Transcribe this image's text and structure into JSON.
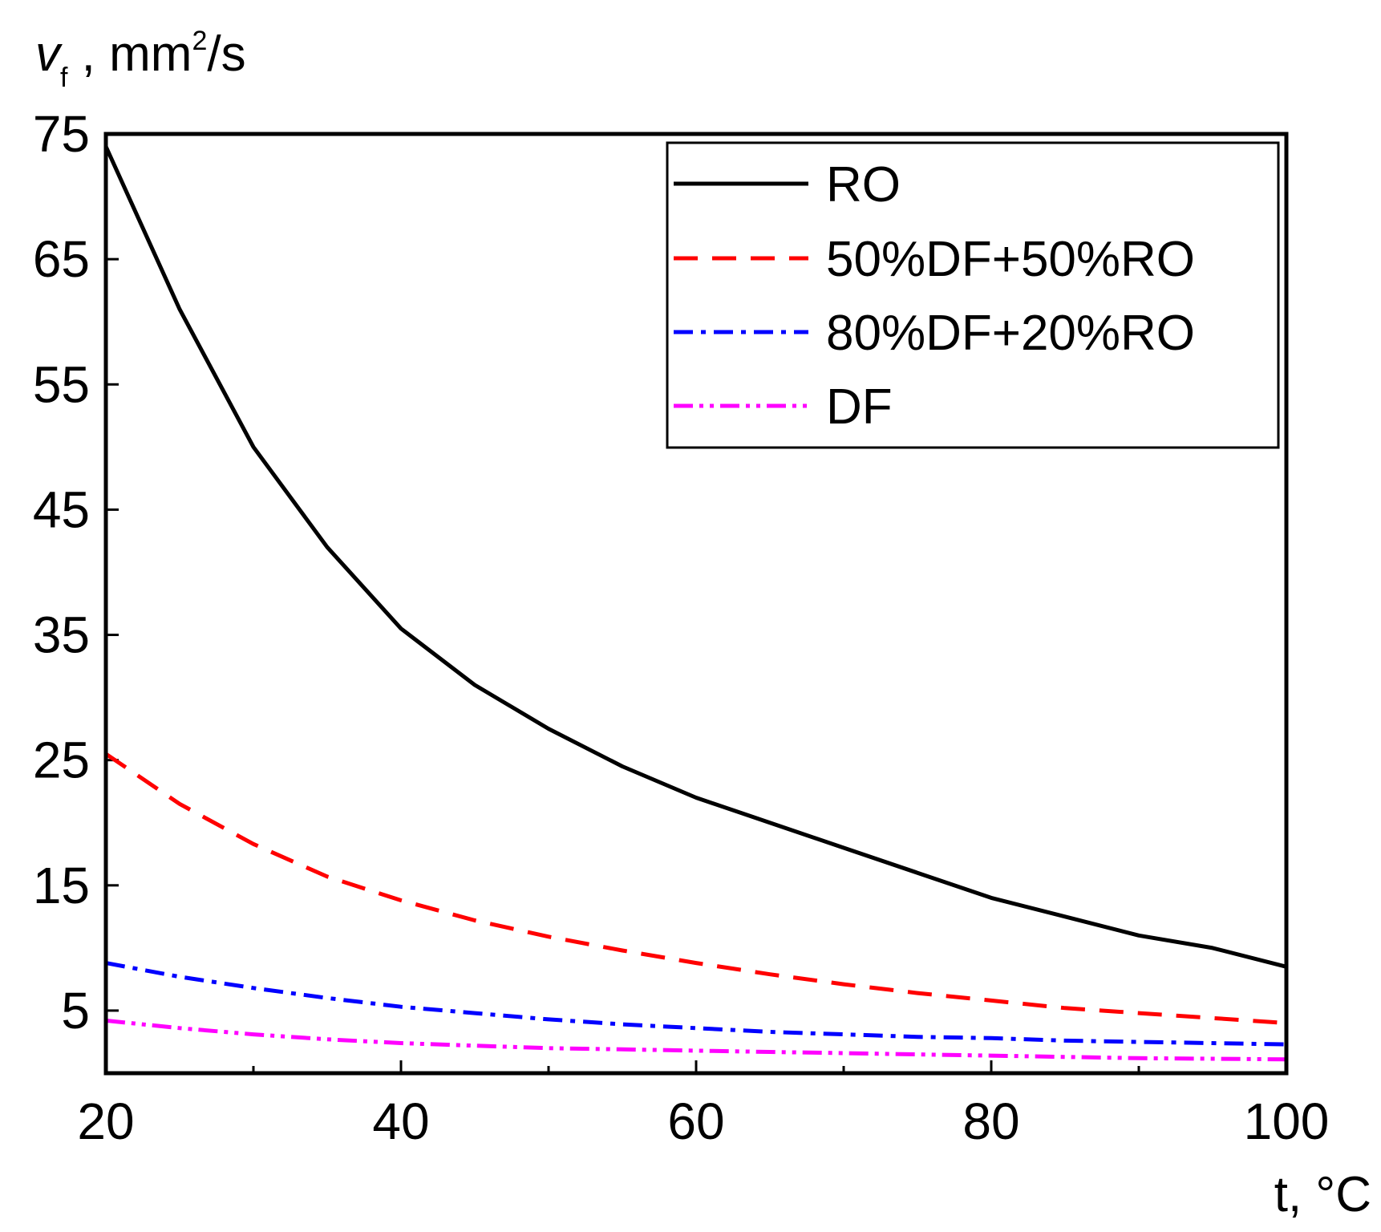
{
  "chart_data": {
    "type": "line",
    "title": "",
    "ylabel": {
      "symbol": "v",
      "subscript": "f",
      "sep": " ,",
      "unit_main": " mm",
      "unit_sup": "2",
      "unit_tail": "/s"
    },
    "xlabel": "t, °C",
    "xlim": [
      20,
      100
    ],
    "ylim": [
      0,
      75
    ],
    "x_major_ticks": [
      20,
      40,
      60,
      80,
      100
    ],
    "x_tick_labels": [
      "20",
      "40",
      "60",
      "80",
      "100"
    ],
    "x_minor_ticks": [
      30,
      50,
      70,
      90
    ],
    "y_ticks": [
      5,
      15,
      25,
      35,
      45,
      55,
      65,
      75
    ],
    "y_tick_labels": [
      "5",
      "15",
      "25",
      "35",
      "45",
      "55",
      "65",
      "75"
    ],
    "grid": false,
    "legend_position": "top-right",
    "x": [
      20,
      25,
      30,
      35,
      40,
      45,
      50,
      55,
      60,
      65,
      70,
      75,
      80,
      85,
      90,
      95,
      100
    ],
    "series": [
      {
        "name": "RO",
        "color": "#000000",
        "dash": "solid",
        "values": [
          74.0,
          61.0,
          50.0,
          42.0,
          35.5,
          31.0,
          27.5,
          24.5,
          22.0,
          20.0,
          18.0,
          16.0,
          14.0,
          12.5,
          11.0,
          10.0,
          8.5
        ]
      },
      {
        "name": "50%DF+50%RO",
        "color": "#ff0000",
        "dash": "dashed",
        "values": [
          25.5,
          21.5,
          18.3,
          15.7,
          13.8,
          12.2,
          10.9,
          9.8,
          8.8,
          7.9,
          7.1,
          6.4,
          5.8,
          5.2,
          4.8,
          4.4,
          4.0
        ]
      },
      {
        "name": "80%DF+20%RO",
        "color": "#0000ff",
        "dash": "dash-dot",
        "values": [
          8.8,
          7.7,
          6.8,
          6.0,
          5.3,
          4.8,
          4.3,
          3.9,
          3.6,
          3.3,
          3.1,
          2.9,
          2.8,
          2.6,
          2.5,
          2.4,
          2.3
        ]
      },
      {
        "name": "DF",
        "color": "#ff00ff",
        "dash": "dash-dot-dot",
        "values": [
          4.2,
          3.6,
          3.1,
          2.7,
          2.4,
          2.2,
          2.0,
          1.9,
          1.8,
          1.7,
          1.6,
          1.5,
          1.4,
          1.3,
          1.2,
          1.15,
          1.1
        ]
      }
    ]
  }
}
